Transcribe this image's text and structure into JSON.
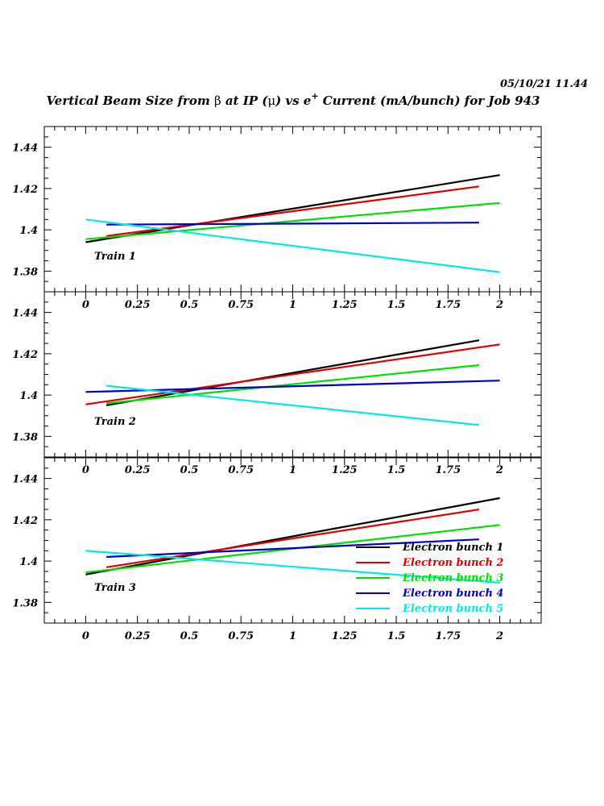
{
  "header": {
    "timestamp": "05/10/21   11.44",
    "title_pre": "Vertical Beam Size from ",
    "title_beta": "β",
    "title_mid": " at IP (",
    "title_mu": "μ",
    "title_post1": ") vs e",
    "title_sup": "+",
    "title_post2": " Current (mA/bunch) for Job 943"
  },
  "chart_data": {
    "type": "line",
    "xlim": [
      -0.2,
      2.2
    ],
    "ylim": [
      1.37,
      1.45
    ],
    "x_ticks": [
      0,
      0.25,
      0.5,
      0.75,
      1,
      1.25,
      1.5,
      1.75,
      2
    ],
    "x_tick_labels": [
      "0",
      "0.25",
      "0.5",
      "0.75",
      "1",
      "1.25",
      "1.5",
      "1.75",
      "2"
    ],
    "y_ticks": [
      1.38,
      1.4,
      1.42,
      1.44
    ],
    "y_tick_labels": [
      "1.38",
      "1.4",
      "1.42",
      "1.44"
    ],
    "grid": false,
    "legend_position": "inside-bottom-right of bottom panel",
    "series_colors": [
      "#000000",
      "#e00000",
      "#00e000",
      "#0000c8",
      "#00e8e8"
    ],
    "panels": [
      {
        "label": "Train 1",
        "series": [
          {
            "name": "Electron bunch 1",
            "x": [
              0,
              2
            ],
            "y": [
              1.394,
              1.4265
            ]
          },
          {
            "name": "Electron bunch 2",
            "x": [
              0.1,
              1.9
            ],
            "y": [
              1.397,
              1.421
            ]
          },
          {
            "name": "Electron bunch 3",
            "x": [
              0,
              2
            ],
            "y": [
              1.3955,
              1.413
            ]
          },
          {
            "name": "Electron bunch 4",
            "x": [
              0.1,
              1.9
            ],
            "y": [
              1.4025,
              1.4035
            ]
          },
          {
            "name": "Electron bunch 5",
            "x": [
              0,
              2
            ],
            "y": [
              1.405,
              1.3795
            ]
          }
        ]
      },
      {
        "label": "Train 2",
        "series": [
          {
            "name": "Electron bunch 1",
            "x": [
              0.1,
              1.9
            ],
            "y": [
              1.395,
              1.4265
            ]
          },
          {
            "name": "Electron bunch 2",
            "x": [
              0,
              2
            ],
            "y": [
              1.3955,
              1.4245
            ]
          },
          {
            "name": "Electron bunch 3",
            "x": [
              0.1,
              1.9
            ],
            "y": [
              1.396,
              1.4145
            ]
          },
          {
            "name": "Electron bunch 4",
            "x": [
              0,
              2
            ],
            "y": [
              1.4015,
              1.407
            ]
          },
          {
            "name": "Electron bunch 5",
            "x": [
              0.1,
              1.9
            ],
            "y": [
              1.4045,
              1.3855
            ]
          }
        ]
      },
      {
        "label": "Train 3",
        "series": [
          {
            "name": "Electron bunch 1",
            "x": [
              0,
              2
            ],
            "y": [
              1.3935,
              1.4305
            ]
          },
          {
            "name": "Electron bunch 2",
            "x": [
              0.1,
              1.9
            ],
            "y": [
              1.397,
              1.425
            ]
          },
          {
            "name": "Electron bunch 3",
            "x": [
              0,
              2
            ],
            "y": [
              1.3945,
              1.4175
            ]
          },
          {
            "name": "Electron bunch 4",
            "x": [
              0.1,
              1.9
            ],
            "y": [
              1.402,
              1.4105
            ]
          },
          {
            "name": "Electron bunch 5",
            "x": [
              0,
              2
            ],
            "y": [
              1.405,
              1.3895
            ]
          }
        ]
      }
    ],
    "legend": [
      {
        "name": "Electron bunch 1",
        "color": "#000000"
      },
      {
        "name": "Electron bunch 2",
        "color": "#e00000"
      },
      {
        "name": "Electron bunch 3",
        "color": "#00e000"
      },
      {
        "name": "Electron bunch 4",
        "color": "#0000c8"
      },
      {
        "name": "Electron bunch 5",
        "color": "#00e8e8"
      }
    ]
  }
}
